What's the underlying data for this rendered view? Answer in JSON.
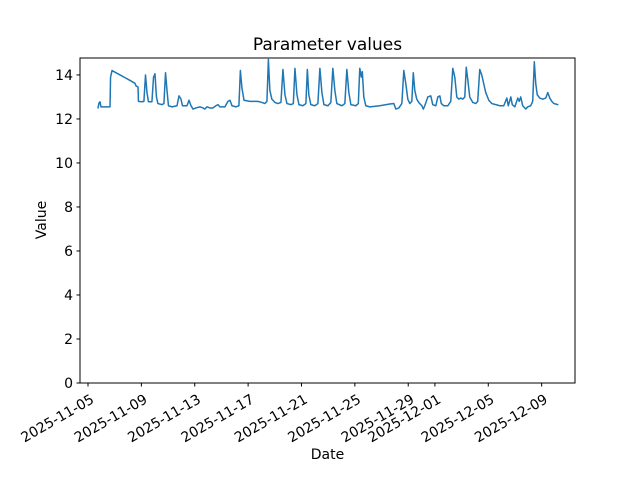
{
  "figure": {
    "background": "#ffffff",
    "frame_color": "#000000"
  },
  "chart_data": {
    "type": "line",
    "title": "Parameter values",
    "xlabel": "Date",
    "ylabel": "Value",
    "grid": false,
    "legend": "none",
    "line_color": "#1f77b4",
    "line_width": 1.5,
    "x_unit": "days since 2025-11-05",
    "xlim": [
      -0.6,
      36.5
    ],
    "ylim": [
      0,
      14.77
    ],
    "y_ticks": [
      0,
      2,
      4,
      6,
      8,
      10,
      12,
      14
    ],
    "x_ticks": [
      {
        "label": "2025-11-05",
        "day": 0
      },
      {
        "label": "2025-11-09",
        "day": 4
      },
      {
        "label": "2025-11-13",
        "day": 8
      },
      {
        "label": "2025-11-17",
        "day": 12
      },
      {
        "label": "2025-11-21",
        "day": 16
      },
      {
        "label": "2025-11-25",
        "day": 20
      },
      {
        "label": "2025-11-29",
        "day": 24
      },
      {
        "label": "2025-12-01",
        "day": 26
      },
      {
        "label": "2025-12-05",
        "day": 30
      },
      {
        "label": "2025-12-09",
        "day": 34
      }
    ],
    "series": [
      {
        "name": "parameter-values",
        "points": [
          [
            0.75,
            12.5
          ],
          [
            0.82,
            12.72
          ],
          [
            0.9,
            12.78
          ],
          [
            0.97,
            12.55
          ],
          [
            1.12,
            12.55
          ],
          [
            1.65,
            12.55
          ],
          [
            1.69,
            13.9
          ],
          [
            1.8,
            14.2
          ],
          [
            2.4,
            14.0
          ],
          [
            3.15,
            13.75
          ],
          [
            3.52,
            13.62
          ],
          [
            3.6,
            13.5
          ],
          [
            3.75,
            13.45
          ],
          [
            3.78,
            12.8
          ],
          [
            4.04,
            12.78
          ],
          [
            4.19,
            12.8
          ],
          [
            4.31,
            14.0
          ],
          [
            4.42,
            13.2
          ],
          [
            4.53,
            12.78
          ],
          [
            4.79,
            12.78
          ],
          [
            4.91,
            13.9
          ],
          [
            5.02,
            14.05
          ],
          [
            5.13,
            13.0
          ],
          [
            5.24,
            12.7
          ],
          [
            5.54,
            12.65
          ],
          [
            5.69,
            12.7
          ],
          [
            5.81,
            14.1
          ],
          [
            5.92,
            13.3
          ],
          [
            6.03,
            12.6
          ],
          [
            6.29,
            12.55
          ],
          [
            6.67,
            12.6
          ],
          [
            6.82,
            13.05
          ],
          [
            6.97,
            12.9
          ],
          [
            7.08,
            12.6
          ],
          [
            7.42,
            12.6
          ],
          [
            7.57,
            12.85
          ],
          [
            7.72,
            12.6
          ],
          [
            7.87,
            12.45
          ],
          [
            8.09,
            12.5
          ],
          [
            8.39,
            12.55
          ],
          [
            8.61,
            12.5
          ],
          [
            8.76,
            12.45
          ],
          [
            8.91,
            12.55
          ],
          [
            9.14,
            12.5
          ],
          [
            9.36,
            12.5
          ],
          [
            9.59,
            12.6
          ],
          [
            9.74,
            12.65
          ],
          [
            9.89,
            12.55
          ],
          [
            10.26,
            12.55
          ],
          [
            10.49,
            12.8
          ],
          [
            10.64,
            12.85
          ],
          [
            10.79,
            12.6
          ],
          [
            11.09,
            12.55
          ],
          [
            11.31,
            12.6
          ],
          [
            11.42,
            14.2
          ],
          [
            11.54,
            13.4
          ],
          [
            11.69,
            12.85
          ],
          [
            12.13,
            12.8
          ],
          [
            12.73,
            12.8
          ],
          [
            13.03,
            12.75
          ],
          [
            13.26,
            12.7
          ],
          [
            13.41,
            12.8
          ],
          [
            13.52,
            14.7
          ],
          [
            13.63,
            13.3
          ],
          [
            13.78,
            12.9
          ],
          [
            14.01,
            12.75
          ],
          [
            14.23,
            12.7
          ],
          [
            14.46,
            12.75
          ],
          [
            14.61,
            14.25
          ],
          [
            14.76,
            13.1
          ],
          [
            14.91,
            12.7
          ],
          [
            15.21,
            12.65
          ],
          [
            15.39,
            12.7
          ],
          [
            15.51,
            14.3
          ],
          [
            15.66,
            13.1
          ],
          [
            15.81,
            12.65
          ],
          [
            16.1,
            12.6
          ],
          [
            16.33,
            12.7
          ],
          [
            16.44,
            14.25
          ],
          [
            16.55,
            13.1
          ],
          [
            16.7,
            12.65
          ],
          [
            17.0,
            12.6
          ],
          [
            17.23,
            12.7
          ],
          [
            17.38,
            14.3
          ],
          [
            17.53,
            13.2
          ],
          [
            17.68,
            12.65
          ],
          [
            17.98,
            12.6
          ],
          [
            18.2,
            12.75
          ],
          [
            18.35,
            14.3
          ],
          [
            18.5,
            13.3
          ],
          [
            18.65,
            12.7
          ],
          [
            19.03,
            12.6
          ],
          [
            19.25,
            12.7
          ],
          [
            19.4,
            14.25
          ],
          [
            19.55,
            13.2
          ],
          [
            19.7,
            12.65
          ],
          [
            20.07,
            12.6
          ],
          [
            20.26,
            12.7
          ],
          [
            20.37,
            14.3
          ],
          [
            20.49,
            13.9
          ],
          [
            20.56,
            14.15
          ],
          [
            20.67,
            13.0
          ],
          [
            20.82,
            12.6
          ],
          [
            21.12,
            12.55
          ],
          [
            21.87,
            12.6
          ],
          [
            22.62,
            12.68
          ],
          [
            22.92,
            12.7
          ],
          [
            23.07,
            12.45
          ],
          [
            23.3,
            12.5
          ],
          [
            23.52,
            12.7
          ],
          [
            23.67,
            14.2
          ],
          [
            23.82,
            13.6
          ],
          [
            23.97,
            12.9
          ],
          [
            24.12,
            12.7
          ],
          [
            24.27,
            12.8
          ],
          [
            24.38,
            14.1
          ],
          [
            24.49,
            13.3
          ],
          [
            24.64,
            12.9
          ],
          [
            24.79,
            12.75
          ],
          [
            25.02,
            12.6
          ],
          [
            25.13,
            12.45
          ],
          [
            25.24,
            12.6
          ],
          [
            25.47,
            13.0
          ],
          [
            25.69,
            13.05
          ],
          [
            25.84,
            12.65
          ],
          [
            26.07,
            12.6
          ],
          [
            26.22,
            13.0
          ],
          [
            26.37,
            13.05
          ],
          [
            26.48,
            12.7
          ],
          [
            26.67,
            12.6
          ],
          [
            26.97,
            12.6
          ],
          [
            27.19,
            12.8
          ],
          [
            27.34,
            14.3
          ],
          [
            27.49,
            13.9
          ],
          [
            27.64,
            13.0
          ],
          [
            27.79,
            12.9
          ],
          [
            27.94,
            12.95
          ],
          [
            28.09,
            12.9
          ],
          [
            28.24,
            13.0
          ],
          [
            28.35,
            14.35
          ],
          [
            28.46,
            13.8
          ],
          [
            28.61,
            13.0
          ],
          [
            28.84,
            12.75
          ],
          [
            29.06,
            12.7
          ],
          [
            29.21,
            12.8
          ],
          [
            29.36,
            14.25
          ],
          [
            29.51,
            14.0
          ],
          [
            29.66,
            13.6
          ],
          [
            29.81,
            13.2
          ],
          [
            30.04,
            12.85
          ],
          [
            30.26,
            12.7
          ],
          [
            30.56,
            12.65
          ],
          [
            30.86,
            12.6
          ],
          [
            31.16,
            12.6
          ],
          [
            31.39,
            12.95
          ],
          [
            31.5,
            12.6
          ],
          [
            31.69,
            13.0
          ],
          [
            31.8,
            12.65
          ],
          [
            31.99,
            12.55
          ],
          [
            32.21,
            12.95
          ],
          [
            32.32,
            12.8
          ],
          [
            32.43,
            13.0
          ],
          [
            32.58,
            12.6
          ],
          [
            32.81,
            12.45
          ],
          [
            32.96,
            12.55
          ],
          [
            33.18,
            12.6
          ],
          [
            33.33,
            12.8
          ],
          [
            33.45,
            14.6
          ],
          [
            33.56,
            13.6
          ],
          [
            33.67,
            13.1
          ],
          [
            33.86,
            12.95
          ],
          [
            34.08,
            12.9
          ],
          [
            34.31,
            12.95
          ],
          [
            34.46,
            13.2
          ],
          [
            34.61,
            12.95
          ],
          [
            34.76,
            12.8
          ],
          [
            34.91,
            12.7
          ],
          [
            35.06,
            12.68
          ],
          [
            35.21,
            12.65
          ]
        ]
      }
    ]
  }
}
